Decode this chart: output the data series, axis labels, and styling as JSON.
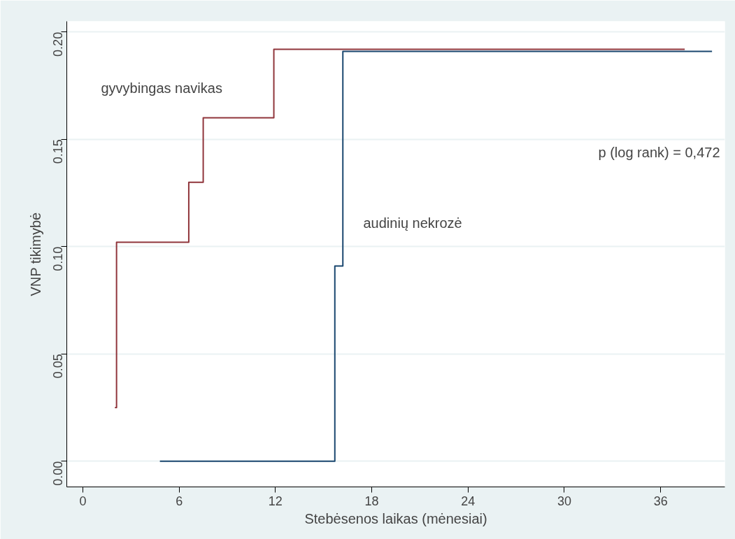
{
  "chart_data": {
    "type": "step",
    "xlabel": "Stebėsenos laikas (mėnesiai)",
    "ylabel": "VNP tikimybė",
    "xlim": [
      -1,
      40
    ],
    "ylim": [
      -0.012,
      0.205
    ],
    "xticks": [
      0,
      6,
      12,
      18,
      24,
      30,
      36
    ],
    "yticks": [
      {
        "value": 0,
        "label": "0.00"
      },
      {
        "value": 0.05,
        "label": "0.05"
      },
      {
        "value": 0.1,
        "label": "0.10"
      },
      {
        "value": 0.15,
        "label": "0.15"
      },
      {
        "value": 0.2,
        "label": "0.20"
      }
    ],
    "grid": "y",
    "series": [
      {
        "color": "#90353b",
        "x": [
          2.0,
          2.1,
          6.6,
          7.5,
          11.9,
          37.5
        ],
        "values": [
          0.025,
          0.102,
          0.13,
          0.16,
          0.192,
          0.192
        ]
      },
      {
        "color": "#1a476f",
        "x": [
          4.8,
          15.7,
          16.2,
          39.2
        ],
        "values": [
          0.0,
          0.091,
          0.191,
          0.191
        ]
      }
    ],
    "annotations": [
      "gyvybingas navikas",
      "audinių nekrozė",
      "p (log rank) = 0,472"
    ]
  }
}
